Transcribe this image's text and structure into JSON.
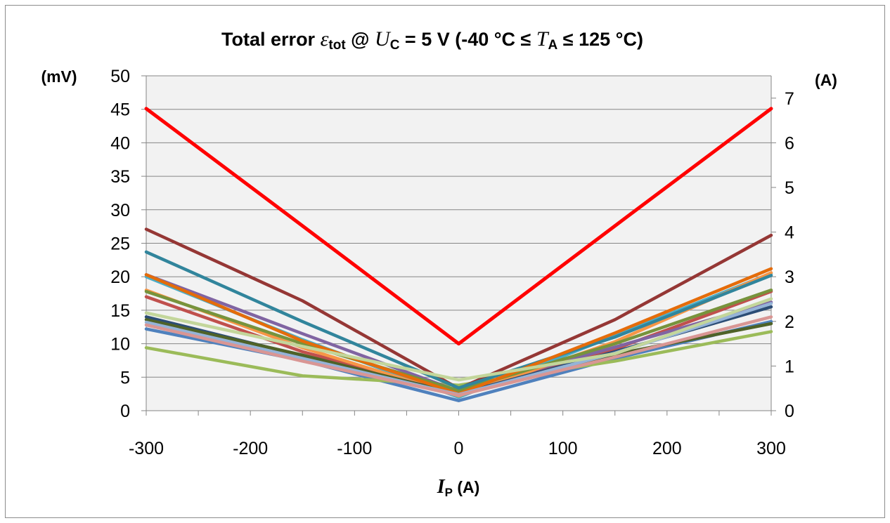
{
  "chart_data": {
    "type": "line",
    "title": {
      "prefix": "Total error ",
      "eps": "ε",
      "eps_sub": "tot",
      "mid1": " @ ",
      "u": "U",
      "u_sub": "C",
      "mid2": " = 5 V (-40 °C ≤ ",
      "t": "T",
      "t_sub": "A",
      "suffix": " ≤ 125 °C)"
    },
    "xlabel": {
      "sym": "I",
      "sub": "P",
      "unit": " (A)"
    },
    "ylabel_left": "(mV)",
    "ylabel_right": "(A)",
    "xlim": [
      -300,
      300
    ],
    "ylim_left": [
      0,
      50
    ],
    "ylim_right": [
      0,
      7.5
    ],
    "x_ticks": [
      "-300",
      "-200",
      "-100",
      "0",
      "100",
      "200",
      "300"
    ],
    "y_ticks_left": [
      "0",
      "5",
      "10",
      "15",
      "20",
      "25",
      "30",
      "35",
      "40",
      "45",
      "50"
    ],
    "y_ticks_right": [
      "0",
      "1",
      "2",
      "3",
      "4",
      "5",
      "6",
      "7"
    ],
    "grid": true,
    "legend": "none",
    "x": [
      -300,
      -150,
      0,
      150,
      300
    ],
    "series": [
      {
        "color": "#4f81bd",
        "values": [
          12.2,
          7.5,
          1.5,
          7.8,
          13.3
        ]
      },
      {
        "color": "#c0504d",
        "values": [
          17.0,
          8.8,
          2.6,
          9.2,
          17.8
        ]
      },
      {
        "color": "#9bbb59",
        "values": [
          9.4,
          5.2,
          3.8,
          7.4,
          11.8
        ]
      },
      {
        "color": "#8064a2",
        "values": [
          20.3,
          11.5,
          2.9,
          9.5,
          16.2
        ]
      },
      {
        "color": "#4bacc6",
        "values": [
          20.0,
          10.6,
          2.0,
          11.2,
          20.5
        ]
      },
      {
        "color": "#f79646",
        "values": [
          18.0,
          9.4,
          2.2,
          10.3,
          20.6
        ]
      },
      {
        "color": "#2c4d75",
        "values": [
          14.0,
          8.2,
          2.5,
          8.8,
          15.5
        ]
      },
      {
        "color": "#4f6228",
        "values": [
          13.6,
          8.3,
          2.4,
          8.4,
          13.0
        ]
      },
      {
        "color": "#953735",
        "values": [
          27.1,
          16.4,
          3.3,
          13.6,
          26.2
        ]
      },
      {
        "color": "#77933c",
        "values": [
          17.8,
          10.0,
          3.0,
          10.0,
          18.0
        ]
      },
      {
        "color": "#31859c",
        "values": [
          23.7,
          13.3,
          3.4,
          11.0,
          20.2
        ]
      },
      {
        "color": "#e46c0a",
        "values": [
          20.3,
          10.4,
          2.5,
          11.6,
          21.2
        ]
      },
      {
        "color": "#95b3d7",
        "values": [
          13.2,
          7.8,
          2.4,
          8.6,
          16.0
        ]
      },
      {
        "color": "#d99694",
        "values": [
          12.8,
          7.4,
          2.3,
          8.0,
          14.0
        ]
      },
      {
        "color": "#c3d69b",
        "values": [
          14.6,
          9.6,
          4.6,
          8.5,
          16.7
        ]
      },
      {
        "color": "#ff0000",
        "values": [
          45.1,
          27.6,
          10.0,
          27.6,
          45.1
        ]
      }
    ]
  }
}
